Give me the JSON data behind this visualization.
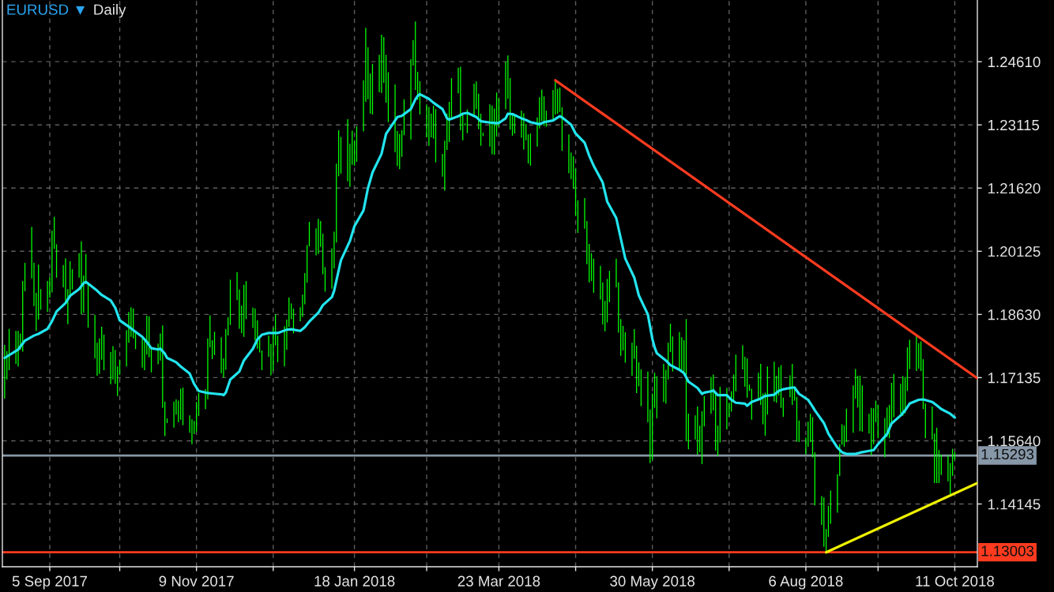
{
  "chart_data": {
    "type": "bar",
    "title": "EURUSD ▼",
    "subtitle": "Daily",
    "x": [
      "2017-08-16",
      "2017-08-17",
      "2017-08-18",
      "2017-08-21",
      "2017-08-22",
      "2017-08-23",
      "2017-08-24",
      "2017-08-25",
      "2017-08-28",
      "2017-08-29",
      "2017-08-30",
      "2017-08-31",
      "2017-09-01",
      "2017-09-04",
      "2017-09-05",
      "2017-09-06",
      "2017-09-07",
      "2017-09-08",
      "2017-09-11",
      "2017-09-12",
      "2017-09-13",
      "2017-09-14",
      "2017-09-15",
      "2017-09-18",
      "2017-09-19",
      "2017-09-20",
      "2017-09-21",
      "2017-09-22",
      "2017-09-25",
      "2017-09-26",
      "2017-09-27",
      "2017-09-28",
      "2017-09-29",
      "2017-10-02",
      "2017-10-03",
      "2017-10-04",
      "2017-10-05",
      "2017-10-06",
      "2017-10-09",
      "2017-10-10",
      "2017-10-11",
      "2017-10-12",
      "2017-10-13",
      "2017-10-16",
      "2017-10-17",
      "2017-10-18",
      "2017-10-19",
      "2017-10-20",
      "2017-10-23",
      "2017-10-24",
      "2017-10-25",
      "2017-10-26",
      "2017-10-27",
      "2017-10-30",
      "2017-10-31",
      "2017-11-01",
      "2017-11-02",
      "2017-11-03",
      "2017-11-06",
      "2017-11-07",
      "2017-11-08",
      "2017-11-09",
      "2017-11-10",
      "2017-11-13",
      "2017-11-14",
      "2017-11-15",
      "2017-11-16",
      "2017-11-17",
      "2017-11-20",
      "2017-11-21",
      "2017-11-22",
      "2017-11-23",
      "2017-11-24",
      "2017-11-27",
      "2017-11-28",
      "2017-11-29",
      "2017-11-30",
      "2017-12-01",
      "2017-12-04",
      "2017-12-05",
      "2017-12-06",
      "2017-12-07",
      "2017-12-08",
      "2017-12-11",
      "2017-12-12",
      "2017-12-13",
      "2017-12-14",
      "2017-12-15",
      "2017-12-18",
      "2017-12-19",
      "2017-12-20",
      "2017-12-21",
      "2017-12-22",
      "2017-12-25",
      "2017-12-26",
      "2017-12-27",
      "2017-12-28",
      "2017-12-29",
      "2018-01-01",
      "2018-01-02",
      "2018-01-03",
      "2018-01-04",
      "2018-01-05",
      "2018-01-08",
      "2018-01-09",
      "2018-01-10",
      "2018-01-11",
      "2018-01-12",
      "2018-01-15",
      "2018-01-16",
      "2018-01-17",
      "2018-01-18",
      "2018-01-19",
      "2018-01-22",
      "2018-01-23",
      "2018-01-24",
      "2018-01-25",
      "2018-01-26",
      "2018-01-29",
      "2018-01-30",
      "2018-01-31",
      "2018-02-01",
      "2018-02-02",
      "2018-02-05",
      "2018-02-06",
      "2018-02-07",
      "2018-02-08",
      "2018-02-09",
      "2018-02-12",
      "2018-02-13",
      "2018-02-14",
      "2018-02-15",
      "2018-02-16",
      "2018-02-19",
      "2018-02-20",
      "2018-02-21",
      "2018-02-22",
      "2018-02-23",
      "2018-02-26",
      "2018-02-27",
      "2018-02-28",
      "2018-03-01",
      "2018-03-02",
      "2018-03-05",
      "2018-03-06",
      "2018-03-07",
      "2018-03-08",
      "2018-03-09",
      "2018-03-12",
      "2018-03-13",
      "2018-03-14",
      "2018-03-15",
      "2018-03-16",
      "2018-03-19",
      "2018-03-20",
      "2018-03-21",
      "2018-03-22",
      "2018-03-23",
      "2018-03-26",
      "2018-03-27",
      "2018-03-28",
      "2018-03-29",
      "2018-03-30",
      "2018-04-02",
      "2018-04-03",
      "2018-04-04",
      "2018-04-05",
      "2018-04-06",
      "2018-04-09",
      "2018-04-10",
      "2018-04-11",
      "2018-04-12",
      "2018-04-13",
      "2018-04-16",
      "2018-04-17",
      "2018-04-18",
      "2018-04-19",
      "2018-04-20",
      "2018-04-23",
      "2018-04-24",
      "2018-04-25",
      "2018-04-26",
      "2018-04-27",
      "2018-04-30",
      "2018-05-01",
      "2018-05-02",
      "2018-05-03",
      "2018-05-04",
      "2018-05-07",
      "2018-05-08",
      "2018-05-09",
      "2018-05-10",
      "2018-05-11",
      "2018-05-14",
      "2018-05-15",
      "2018-05-16",
      "2018-05-17",
      "2018-05-18",
      "2018-05-21",
      "2018-05-22",
      "2018-05-23",
      "2018-05-24",
      "2018-05-25",
      "2018-05-28",
      "2018-05-29",
      "2018-05-30",
      "2018-05-31",
      "2018-06-01",
      "2018-06-04",
      "2018-06-05",
      "2018-06-06",
      "2018-06-07",
      "2018-06-08",
      "2018-06-11",
      "2018-06-12",
      "2018-06-13",
      "2018-06-14",
      "2018-06-15",
      "2018-06-18",
      "2018-06-19",
      "2018-06-20",
      "2018-06-21",
      "2018-06-22",
      "2018-06-25",
      "2018-06-26",
      "2018-06-27",
      "2018-06-28",
      "2018-06-29",
      "2018-07-02",
      "2018-07-03",
      "2018-07-04",
      "2018-07-05",
      "2018-07-06",
      "2018-07-09",
      "2018-07-10",
      "2018-07-11",
      "2018-07-12",
      "2018-07-13",
      "2018-07-16",
      "2018-07-17",
      "2018-07-18",
      "2018-07-19",
      "2018-07-20",
      "2018-07-23",
      "2018-07-24",
      "2018-07-25",
      "2018-07-26",
      "2018-07-27",
      "2018-07-30",
      "2018-07-31",
      "2018-08-01",
      "2018-08-02",
      "2018-08-03",
      "2018-08-06",
      "2018-08-07",
      "2018-08-08",
      "2018-08-09",
      "2018-08-10",
      "2018-08-13",
      "2018-08-14",
      "2018-08-15",
      "2018-08-16",
      "2018-08-17",
      "2018-08-20",
      "2018-08-21",
      "2018-08-22",
      "2018-08-23",
      "2018-08-24",
      "2018-08-27",
      "2018-08-28",
      "2018-08-29",
      "2018-08-30",
      "2018-08-31",
      "2018-09-03",
      "2018-09-04",
      "2018-09-05",
      "2018-09-06",
      "2018-09-07",
      "2018-09-10",
      "2018-09-11",
      "2018-09-12",
      "2018-09-13",
      "2018-09-14",
      "2018-09-17",
      "2018-09-18",
      "2018-09-19",
      "2018-09-20",
      "2018-09-21",
      "2018-09-24",
      "2018-09-25",
      "2018-09-26",
      "2018-09-27",
      "2018-09-28",
      "2018-10-01",
      "2018-10-02",
      "2018-10-03",
      "2018-10-04",
      "2018-10-05",
      "2018-10-08",
      "2018-10-09",
      "2018-10-10",
      "2018-10-11"
    ],
    "series": [
      {
        "color": "#00ff00",
        "base": [
          1.1664,
          1.1709,
          1.1731,
          1.1746,
          1.174,
          1.1779,
          1.1775,
          1.1918,
          1.1948,
          1.1883,
          1.1824,
          1.1851,
          1.1874,
          1.1869,
          1.1903,
          1.1915,
          1.2018,
          1.195,
          1.1927,
          1.1891,
          1.184,
          1.1903,
          1.1922,
          1.195,
          1.1863,
          1.1867,
          1.1935,
          1.1832,
          1.1759,
          1.1718,
          1.1722,
          1.1756,
          1.1731,
          1.1698,
          1.1709,
          1.1699,
          1.167,
          1.172,
          1.174,
          1.1796,
          1.181,
          1.1806,
          1.1781,
          1.1737,
          1.1731,
          1.1768,
          1.1762,
          1.1726,
          1.1745,
          1.1754,
          1.1642,
          1.1575,
          1.1606,
          1.1595,
          1.1626,
          1.1608,
          1.1614,
          1.1601,
          1.1583,
          1.1556,
          1.158,
          1.1586,
          1.1623,
          1.1639,
          1.1662,
          1.1785,
          1.1757,
          1.1767,
          1.1724,
          1.1714,
          1.1732,
          1.1813,
          1.1838,
          1.1897,
          1.1829,
          1.1819,
          1.181,
          1.1852,
          1.1831,
          1.1801,
          1.1782,
          1.1773,
          1.1731,
          1.1763,
          1.1719,
          1.1729,
          1.179,
          1.175,
          1.174,
          1.1779,
          1.1834,
          1.1852,
          1.1818,
          1.1847,
          1.1857,
          1.1887,
          1.1938,
          1.2024,
          1.2003,
          1.2006,
          1.2023,
          1.1958,
          1.1917,
          1.1924,
          1.1972,
          1.2033,
          1.219,
          1.2196,
          1.2178,
          1.2165,
          1.2217,
          1.2215,
          1.2224,
          1.2296,
          1.2366,
          1.2372,
          1.2338,
          1.2336,
          1.2389,
          1.2387,
          1.2411,
          1.2364,
          1.2318,
          1.2247,
          1.2214,
          1.2207,
          1.2236,
          1.2287,
          1.2277,
          1.2452,
          1.2394,
          1.2371,
          1.2336,
          1.2282,
          1.2262,
          1.2282,
          1.2279,
          1.2223,
          1.2189,
          1.2156,
          1.2252,
          1.2271,
          1.2324,
          1.2386,
          1.2299,
          1.2275,
          1.231,
          1.2292,
          1.233,
          1.2349,
          1.2301,
          1.2262,
          1.2285,
          1.226,
          1.2242,
          1.2241,
          1.2284,
          1.2307,
          1.2349,
          1.2373,
          1.23,
          1.2286,
          1.2291,
          1.2281,
          1.2253,
          1.2275,
          1.222,
          1.2215,
          1.226,
          1.2303,
          1.2321,
          1.2309,
          1.2307,
          1.2325,
          1.2336,
          1.2338,
          1.2342,
          1.225,
          1.2197,
          1.2183,
          1.216,
          1.2096,
          1.2056,
          1.2066,
          1.1982,
          1.1939,
          1.1942,
          1.1914,
          1.1898,
          1.1839,
          1.1823,
          1.1844,
          1.1892,
          1.1927,
          1.182,
          1.1765,
          1.1778,
          1.1749,
          1.1718,
          1.1758,
          1.1677,
          1.1693,
          1.1646,
          1.1608,
          1.1511,
          1.1519,
          1.1642,
          1.1617,
          1.1656,
          1.1652,
          1.1709,
          1.1774,
          1.1728,
          1.1734,
          1.1726,
          1.172,
          1.1563,
          1.1544,
          1.1567,
          1.1531,
          1.1537,
          1.1509,
          1.1598,
          1.1628,
          1.1636,
          1.1541,
          1.1528,
          1.156,
          1.1591,
          1.1621,
          1.1633,
          1.1659,
          1.1681,
          1.1733,
          1.1692,
          1.1666,
          1.1682,
          1.1614,
          1.1659,
          1.1649,
          1.1603,
          1.1576,
          1.1626,
          1.1657,
          1.1654,
          1.1671,
          1.1642,
          1.1621,
          1.1667,
          1.1649,
          1.1659,
          1.1562,
          1.1561,
          1.1531,
          1.155,
          1.1561,
          1.1525,
          1.1411,
          1.1365,
          1.1313,
          1.13,
          1.1337,
          1.1368,
          1.1394,
          1.1481,
          1.1555,
          1.155,
          1.1561,
          1.1583,
          1.1664,
          1.1643,
          1.1587,
          1.1586,
          1.1581,
          1.153,
          1.1556,
          1.1608,
          1.157,
          1.1525,
          1.1573,
          1.157,
          1.1605,
          1.162,
          1.1629,
          1.1623,
          1.1629,
          1.1682,
          1.1734,
          1.1729,
          1.1735,
          1.1729,
          1.1639,
          1.157,
          1.1567,
          1.1464,
          1.1464,
          1.1464,
          1.1483,
          1.1468,
          1.1435,
          1.1481,
          1.1519
        ],
        "values": [
          0.0127,
          0.0067,
          0.0098,
          0.0078,
          0.0084,
          0.0039,
          0.0167,
          0.0067,
          0.0122,
          0.0102,
          0.009,
          0.013,
          0.0049,
          0.0073,
          0.0048,
          0.0146,
          0.0076,
          0.0079,
          0.0053,
          0.0105,
          0.0083,
          0.0086,
          0.0048,
          0.0058,
          0.0173,
          0.0088,
          0.0071,
          0.0105,
          0.0103,
          0.0078,
          0.0084,
          0.0078,
          0.0084,
          0.0076,
          0.0079,
          0.008,
          0.007,
          0.0036,
          0.0086,
          0.0073,
          0.007,
          0.0071,
          0.004,
          0.0069,
          0.007,
          0.0092,
          0.0096,
          0.0056,
          0.0049,
          0.0064,
          0.0195,
          0.0082,
          0.0011,
          0.0062,
          0.0036,
          0.0051,
          0.0073,
          0.0089,
          0.0041,
          0.0059,
          0.0031,
          0.007,
          0.0054,
          0.0047,
          0.0144,
          0.0076,
          0.0045,
          0.0055,
          0.0085,
          0.0045,
          0.0096,
          0.0043,
          0.0107,
          0.0066,
          0.0093,
          0.0065,
          0.0123,
          0.009,
          0.0048,
          0.0076,
          0.0067,
          0.0038,
          0.0047,
          0.005,
          0.0074,
          0.0103,
          0.0073,
          0.0063,
          0.0095,
          0.0072,
          0.0069,
          0.0037,
          0.0059,
          0.0033,
          0.0053,
          0.0074,
          0.0089,
          0.0058,
          0.0064,
          0.0083,
          0.0061,
          0.0096,
          0.0058,
          0.0095,
          0.0087,
          0.0187,
          0.0109,
          0.0087,
          0.0147,
          0.0102,
          0.0081,
          0.006,
          0.0084,
          0.0121,
          0.0175,
          0.0123,
          0.0095,
          0.012,
          0.0088,
          0.0138,
          0.0108,
          0.0113,
          0.0118,
          0.016,
          0.0083,
          0.0083,
          0.0063,
          0.0085,
          0.019,
          0.006,
          0.0162,
          0.0066,
          0.0079,
          0.0078,
          0.0092,
          0.0056,
          0.0078,
          0.0126,
          0.0054,
          0.0118,
          0.0086,
          0.0095,
          0.0098,
          0.0061,
          0.015,
          0.0061,
          0.0005,
          0.0056,
          0.0079,
          0.0065,
          0.0084,
          0.0076,
          0.0008,
          0.01,
          0.0115,
          0.0109,
          0.0104,
          0.0067,
          0.0112,
          0.0103,
          0.0122,
          0.0053,
          0.0045,
          0.0064,
          0.0086,
          0.0039,
          0.0069,
          0.0076,
          0.0069,
          0.0074,
          0.0074,
          0.007,
          0.0038,
          0.0069,
          0.0081,
          0.0059,
          0.0058,
          0.0103,
          0.0092,
          0.0063,
          0.0077,
          0.0112,
          0.0077,
          0.0072,
          0.0102,
          0.0091,
          0.0066,
          0.0081,
          0.008,
          0.01,
          0.0072,
          0.0103,
          0.0074,
          0.0068,
          0.0119,
          0.0087,
          0.0058,
          0.0072,
          0.0078,
          0.007,
          0.0112,
          0.0057,
          0.0087,
          0.012,
          0.0127,
          0.0157,
          0.0083,
          0.01,
          0.009,
          0.008,
          0.0087,
          0.0067,
          0.0083,
          0.0087,
          0.0083,
          0.0082,
          0.0289,
          0.0084,
          0.0057,
          0.0114,
          0.0063,
          0.0125,
          0.0072,
          0.0087,
          0.0085,
          0.0137,
          0.0072,
          0.0132,
          0.0098,
          0.0033,
          0.0048,
          0.0062,
          0.0087,
          0.0057,
          0.0071,
          0.0093,
          0.0015,
          0.0073,
          0.0066,
          0.0097,
          0.0073,
          0.0102,
          0.0114,
          0.0094,
          0.0064,
          0.0067,
          0.0101,
          0.0045,
          0.0052,
          0.0097,
          0.0034,
          0.0106,
          0.0051,
          0.0041,
          0.0059,
          0.0067,
          0.0095,
          0.0126,
          0.0068,
          0.0117,
          0.0055,
          0.0073,
          0.0078,
          0.0091,
          0.0075,
          0.0048,
          0.005,
          0.0079,
          0.0112,
          0.007,
          0.0075,
          0.0131,
          0.0109,
          0.0047,
          0.0112,
          0.0085,
          0.0051,
          0.0079,
          0.0093,
          0.007,
          0.0079,
          0.0096,
          0.0102,
          0.007,
          0.0094,
          0.0086,
          0.0103,
          0.0069,
          0.0085,
          0.006,
          0.007,
          0.0118,
          0.0082,
          0.0078,
          0.0117,
          0.0131,
          0.0078,
          0.0048,
          0.0062,
          0.0076,
          0.0064,
          0.0018
        ]
      },
      {
        "type": "line",
        "color": "#22e5ef",
        "x": [
          "2017-08-16",
          "2017-08-22",
          "2017-08-25",
          "2017-08-29",
          "2017-08-31",
          "2017-09-04",
          "2017-09-06",
          "2017-09-08",
          "2017-09-12",
          "2017-09-14",
          "2017-09-18",
          "2017-09-20",
          "2017-09-21",
          "2017-09-22",
          "2017-09-26",
          "2017-09-28",
          "2017-10-02",
          "2017-10-04",
          "2017-10-06",
          "2017-10-10",
          "2017-10-12",
          "2017-10-16",
          "2017-10-18",
          "2017-10-20",
          "2017-10-23",
          "2017-10-24",
          "2017-10-26",
          "2017-10-27",
          "2017-10-31",
          "2017-11-02",
          "2017-11-06",
          "2017-11-08",
          "2017-11-10",
          "2017-11-14",
          "2017-11-16",
          "2017-11-20",
          "2017-11-21",
          "2017-11-22",
          "2017-11-24",
          "2017-11-28",
          "2017-11-30",
          "2017-12-04",
          "2017-12-06",
          "2017-12-08",
          "2017-12-11",
          "2017-12-13",
          "2017-12-15",
          "2017-12-19",
          "2017-12-21",
          "2017-12-25",
          "2017-12-27",
          "2017-12-29",
          "2018-01-02",
          "2018-01-04",
          "2018-01-08",
          "2018-01-09",
          "2018-01-12",
          "2018-01-16",
          "2018-01-18",
          "2018-01-22",
          "2018-01-24",
          "2018-01-26",
          "2018-01-30",
          "2018-02-01",
          "2018-02-05",
          "2018-02-06",
          "2018-02-08",
          "2018-02-12",
          "2018-02-14",
          "2018-02-15",
          "2018-02-16",
          "2018-02-20",
          "2018-02-22",
          "2018-02-26",
          "2018-02-28",
          "2018-03-01",
          "2018-03-05",
          "2018-03-07",
          "2018-03-09",
          "2018-03-13",
          "2018-03-15",
          "2018-03-19",
          "2018-03-21",
          "2018-03-23",
          "2018-03-26",
          "2018-03-27",
          "2018-03-29",
          "2018-04-02",
          "2018-04-04",
          "2018-04-06",
          "2018-04-10",
          "2018-04-12",
          "2018-04-16",
          "2018-04-18",
          "2018-04-19",
          "2018-04-20",
          "2018-04-24",
          "2018-04-26",
          "2018-04-30",
          "2018-05-02",
          "2018-05-04",
          "2018-05-08",
          "2018-05-10",
          "2018-05-14",
          "2018-05-16",
          "2018-05-18",
          "2018-05-22",
          "2018-05-24",
          "2018-05-28",
          "2018-05-30",
          "2018-05-31",
          "2018-06-01",
          "2018-06-05",
          "2018-06-07",
          "2018-06-11",
          "2018-06-13",
          "2018-06-15",
          "2018-06-19",
          "2018-06-21",
          "2018-06-22",
          "2018-06-25",
          "2018-06-26",
          "2018-06-28",
          "2018-07-02",
          "2018-07-04",
          "2018-07-06",
          "2018-07-10",
          "2018-07-11",
          "2018-07-13",
          "2018-07-17",
          "2018-07-19",
          "2018-07-23",
          "2018-07-25",
          "2018-07-27",
          "2018-07-31",
          "2018-08-01",
          "2018-08-03",
          "2018-08-07",
          "2018-08-09",
          "2018-08-10",
          "2018-08-14",
          "2018-08-16",
          "2018-08-20",
          "2018-08-22",
          "2018-08-24",
          "2018-08-28",
          "2018-08-30",
          "2018-09-03",
          "2018-09-05",
          "2018-09-07",
          "2018-09-11",
          "2018-09-13",
          "2018-09-17",
          "2018-09-19",
          "2018-09-21",
          "2018-09-25",
          "2018-09-27",
          "2018-10-01",
          "2018-10-03",
          "2018-10-05",
          "2018-10-09",
          "2018-10-11"
        ],
        "values": [
          1.176,
          1.178,
          1.1801,
          1.1813,
          1.1817,
          1.1829,
          1.1847,
          1.187,
          1.189,
          1.1907,
          1.1923,
          1.1937,
          1.194,
          1.1936,
          1.1919,
          1.1909,
          1.1896,
          1.1879,
          1.1849,
          1.1834,
          1.1826,
          1.181,
          1.1798,
          1.1783,
          1.178,
          1.1782,
          1.177,
          1.176,
          1.175,
          1.174,
          1.1723,
          1.1698,
          1.1682,
          1.1677,
          1.1676,
          1.1674,
          1.1672,
          1.1678,
          1.1709,
          1.1728,
          1.1754,
          1.1782,
          1.1804,
          1.1815,
          1.1819,
          1.1819,
          1.1819,
          1.1827,
          1.1828,
          1.1824,
          1.1833,
          1.1846,
          1.1867,
          1.1885,
          1.1904,
          1.1919,
          1.1991,
          1.2037,
          1.2072,
          1.2109,
          1.2162,
          1.2199,
          1.2243,
          1.229,
          1.2322,
          1.233,
          1.2333,
          1.2349,
          1.2372,
          1.238,
          1.2384,
          1.2373,
          1.2364,
          1.2349,
          1.2327,
          1.2324,
          1.2332,
          1.2338,
          1.234,
          1.233,
          1.232,
          1.2317,
          1.2316,
          1.2316,
          1.2327,
          1.2338,
          1.2337,
          1.2327,
          1.2323,
          1.2318,
          1.2313,
          1.2318,
          1.2322,
          1.2329,
          1.2332,
          1.2329,
          1.2312,
          1.2291,
          1.2269,
          1.2239,
          1.2215,
          1.2175,
          1.213,
          1.2091,
          1.2043,
          1.1995,
          1.195,
          1.1908,
          1.1863,
          1.1805,
          1.1785,
          1.1771,
          1.1754,
          1.1743,
          1.1732,
          1.1724,
          1.1704,
          1.1689,
          1.1675,
          1.1678,
          1.1681,
          1.1683,
          1.1672,
          1.1672,
          1.1661,
          1.1654,
          1.1652,
          1.1647,
          1.1656,
          1.1664,
          1.167,
          1.1673,
          1.1682,
          1.1686,
          1.169,
          1.169,
          1.1675,
          1.1661,
          1.1645,
          1.1636,
          1.1606,
          1.1581,
          1.1548,
          1.1537,
          1.1533,
          1.1533,
          1.1536,
          1.154,
          1.1542,
          1.1556,
          1.158,
          1.1605,
          1.1624,
          1.1636,
          1.1652,
          1.1661,
          1.1662,
          1.1656,
          1.1648,
          1.1639,
          1.1628,
          1.1619
        ]
      },
      {
        "type": "line",
        "color": "#ff3b1f",
        "x": [
          "2018-04-17",
          "2018-10-21"
        ],
        "values": [
          1.2417,
          1.1712
        ]
      },
      {
        "type": "line",
        "color": "#eef000",
        "x": [
          "2018-08-15",
          "2018-10-21"
        ],
        "values": [
          1.13,
          1.1464
        ]
      }
    ],
    "xlim": [
      "2017-08-15",
      "2018-10-21"
    ],
    "xticks": [
      {
        "value": "2017-09-05",
        "label": "5 Sep 2017"
      },
      {
        "value": "2017-10-06",
        "label": null
      },
      {
        "value": "2017-11-09",
        "label": "9 Nov 2017"
      },
      {
        "value": "2017-12-13",
        "label": null
      },
      {
        "value": "2018-01-18",
        "label": "18 Jan 2018"
      },
      {
        "value": "2018-02-19",
        "label": null
      },
      {
        "value": "2018-03-23",
        "label": "23 Mar 2018"
      },
      {
        "value": "2018-04-26",
        "label": null
      },
      {
        "value": "2018-05-30",
        "label": "30 May 2018"
      },
      {
        "value": "2018-07-03",
        "label": null
      },
      {
        "value": "2018-08-06",
        "label": "6 Aug 2018"
      },
      {
        "value": "2018-09-07",
        "label": null
      },
      {
        "value": "2018-10-11",
        "label": "11 Oct 2018"
      }
    ],
    "ylim": [
      1.1266,
      1.2607
    ],
    "yticks": [
      1.14145,
      {
        "value": 1.1564,
        "label": "1.15640"
      },
      1.17135,
      {
        "value": 1.1863,
        "label": "1.18630"
      },
      1.20125,
      {
        "value": 1.2162,
        "label": "1.21620"
      },
      1.23115,
      {
        "value": 1.2461,
        "label": "1.24610"
      }
    ],
    "ref_lines": [
      {
        "axis": "y",
        "value": 1.15293,
        "label": "1.15293",
        "color": "#8697a8"
      },
      {
        "axis": "y",
        "value": 1.13003,
        "label": "1.13003",
        "color": "#ff3b1f"
      }
    ],
    "grid": true
  }
}
